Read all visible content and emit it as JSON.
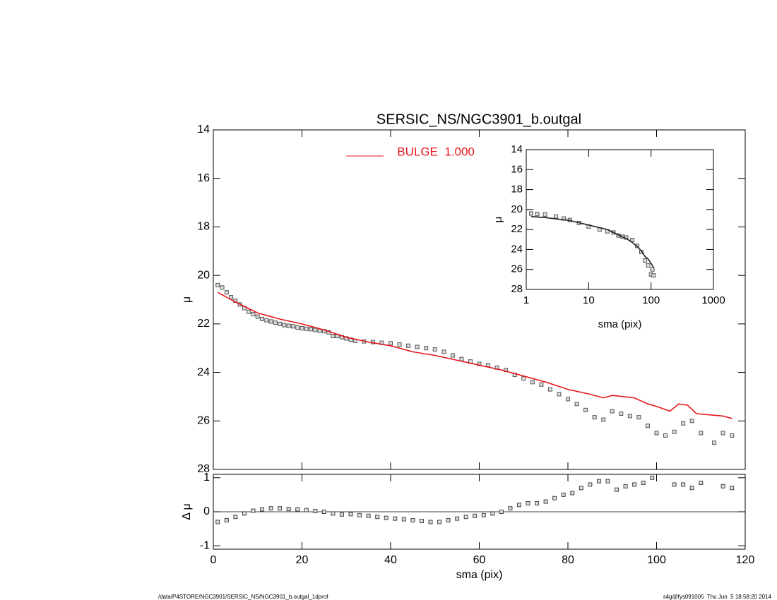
{
  "chart_data": [
    {
      "type": "scatter",
      "title": "SERSIC_NS/NGC3901_b.outgal",
      "ylabel": "μ",
      "xlim": [
        0,
        120
      ],
      "xticks": [
        0,
        20,
        40,
        60,
        80,
        100,
        120
      ],
      "show_xtick_labels": false,
      "ylim": [
        28,
        14
      ],
      "yticks": [
        14,
        16,
        18,
        20,
        22,
        24,
        26,
        28
      ],
      "legend": "upper center",
      "series": [
        {
          "mode": "markers",
          "color": "#555555",
          "x": [
            1,
            2,
            3,
            4,
            5,
            6,
            7,
            8,
            9,
            10,
            11,
            12,
            13,
            14,
            15,
            16,
            17,
            18,
            19,
            20,
            21,
            22,
            23,
            24,
            25,
            26,
            27,
            28,
            29,
            30,
            31,
            32,
            34,
            36,
            38,
            40,
            42,
            44,
            46,
            48,
            50,
            52,
            54,
            56,
            58,
            60,
            62,
            64,
            66,
            68,
            70,
            72,
            74,
            76,
            78,
            80,
            82,
            84,
            86,
            88,
            90,
            92,
            94,
            96,
            98,
            100,
            102,
            104,
            106,
            108,
            110,
            113,
            115,
            117
          ],
          "values": [
            20.4,
            20.5,
            20.7,
            20.9,
            21.05,
            21.2,
            21.35,
            21.5,
            21.6,
            21.7,
            21.8,
            21.85,
            21.9,
            21.95,
            22.0,
            22.05,
            22.08,
            22.1,
            22.15,
            22.18,
            22.2,
            22.22,
            22.25,
            22.28,
            22.3,
            22.35,
            22.5,
            22.5,
            22.55,
            22.6,
            22.65,
            22.7,
            22.72,
            22.75,
            22.78,
            22.8,
            22.85,
            22.9,
            22.95,
            23.0,
            23.05,
            23.15,
            23.3,
            23.45,
            23.55,
            23.65,
            23.7,
            23.8,
            23.9,
            24.1,
            24.25,
            24.4,
            24.5,
            24.7,
            24.9,
            25.1,
            25.3,
            25.55,
            25.85,
            25.95,
            25.6,
            25.7,
            25.8,
            25.85,
            26.2,
            26.5,
            26.6,
            26.45,
            26.1,
            26.0,
            26.5,
            26.9,
            26.5,
            26.6
          ]
        },
        {
          "mode": "line",
          "name": "BULGE  1.000",
          "color": "#e8161b",
          "x": [
            1,
            5,
            10,
            15,
            20,
            25,
            30,
            35,
            40,
            45,
            50,
            55,
            60,
            65,
            70,
            75,
            80,
            85,
            88,
            90,
            95,
            98,
            100,
            103,
            105,
            107,
            109,
            112,
            115,
            117
          ],
          "values": [
            20.7,
            21.1,
            21.55,
            21.8,
            22.0,
            22.25,
            22.55,
            22.75,
            22.9,
            23.15,
            23.3,
            23.5,
            23.7,
            23.9,
            24.15,
            24.4,
            24.7,
            24.9,
            25.05,
            24.95,
            25.05,
            25.3,
            25.4,
            25.6,
            25.3,
            25.35,
            25.7,
            25.75,
            25.8,
            25.9
          ]
        }
      ]
    },
    {
      "type": "scatter",
      "xlabel": "sma (pix)",
      "ylabel": "Δ μ",
      "xlim": [
        0,
        120
      ],
      "xticks": [
        0,
        20,
        40,
        60,
        80,
        100,
        120
      ],
      "show_xtick_labels": true,
      "ylim": [
        -1.1,
        1.1
      ],
      "yticks": [
        -1,
        0,
        1
      ],
      "reference_line": 0,
      "series": [
        {
          "mode": "markers",
          "color": "#444444",
          "x": [
            1,
            3,
            5,
            7,
            9,
            11,
            13,
            15,
            17,
            19,
            21,
            23,
            25,
            27,
            29,
            31,
            33,
            35,
            37,
            39,
            41,
            43,
            45,
            47,
            49,
            51,
            53,
            55,
            57,
            59,
            61,
            63,
            65,
            67,
            69,
            71,
            73,
            75,
            77,
            79,
            81,
            83,
            85,
            87,
            89,
            91,
            93,
            95,
            97,
            99,
            104,
            106,
            108,
            110,
            115,
            117
          ],
          "values": [
            -0.3,
            -0.25,
            -0.15,
            -0.05,
            0.03,
            0.07,
            0.1,
            0.1,
            0.08,
            0.07,
            0.05,
            0.02,
            0.0,
            -0.05,
            -0.08,
            -0.07,
            -0.1,
            -0.12,
            -0.15,
            -0.18,
            -0.2,
            -0.22,
            -0.25,
            -0.27,
            -0.3,
            -0.3,
            -0.25,
            -0.2,
            -0.15,
            -0.12,
            -0.1,
            -0.05,
            0.0,
            0.1,
            0.2,
            0.25,
            0.25,
            0.3,
            0.4,
            0.5,
            0.55,
            0.7,
            0.8,
            0.9,
            0.9,
            0.65,
            0.75,
            0.8,
            0.85,
            1.0,
            0.8,
            0.8,
            0.7,
            0.85,
            0.75,
            0.7
          ]
        }
      ]
    },
    {
      "type": "scatter",
      "xlabel": "sma (pix)",
      "ylabel": "μ",
      "xlog": true,
      "xlim": [
        1,
        1000
      ],
      "xticks": [
        1,
        10,
        100,
        1000
      ],
      "show_xtick_labels": true,
      "ylim": [
        28,
        14
      ],
      "yticks": [
        14,
        16,
        18,
        20,
        22,
        24,
        26,
        28
      ],
      "series": [
        {
          "mode": "markers",
          "color": "#555555",
          "x": [
            1.2,
            1.5,
            2,
            3,
            4,
            5,
            7,
            10,
            15,
            20,
            25,
            30,
            35,
            40,
            50,
            60,
            70,
            80,
            90,
            100,
            105,
            110
          ],
          "values": [
            20.4,
            20.45,
            20.5,
            20.7,
            20.9,
            21.05,
            21.35,
            21.7,
            22.0,
            22.18,
            22.3,
            22.6,
            22.72,
            22.8,
            23.05,
            23.65,
            24.25,
            25.1,
            25.6,
            26.5,
            26.0,
            26.6
          ]
        },
        {
          "mode": "line",
          "color": "#222222",
          "x": [
            1.2,
            2,
            5,
            10,
            20,
            30,
            40,
            50,
            60,
            70,
            80,
            90,
            100,
            110
          ],
          "values": [
            20.7,
            20.8,
            21.1,
            21.55,
            22.0,
            22.55,
            22.9,
            23.3,
            23.7,
            24.15,
            24.7,
            24.95,
            25.4,
            25.8
          ]
        }
      ]
    }
  ],
  "footer": {
    "left": "/data/P4STORE/NGC3901/SERSIC_NS/NGC3901_b.outgal_1dprof",
    "right": "s4g@fys091005  Thu Jun  5 18:58:20 2014"
  }
}
